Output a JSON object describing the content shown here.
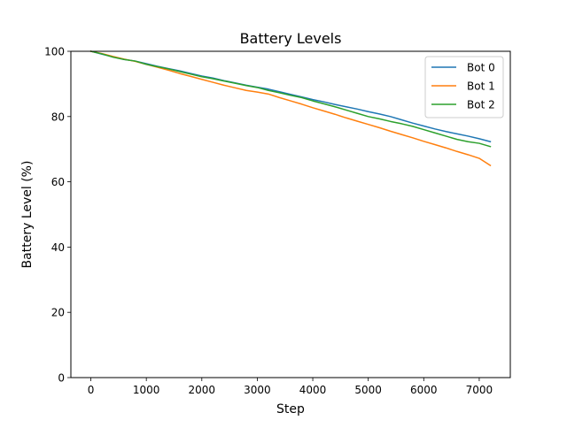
{
  "chart_data": {
    "type": "line",
    "title": "Battery Levels",
    "xlabel": "Step",
    "ylabel": "Battery Level (%)",
    "xlim": [
      -360,
      7560
    ],
    "ylim": [
      0,
      100
    ],
    "xticks": [
      0,
      1000,
      2000,
      3000,
      4000,
      5000,
      6000,
      7000
    ],
    "yticks": [
      0,
      20,
      40,
      60,
      80,
      100
    ],
    "grid": false,
    "legend": "top-right",
    "series": [
      {
        "name": "Bot 0",
        "color": "#1f77b4",
        "x": [
          0,
          200,
          400,
          600,
          800,
          1000,
          1200,
          1400,
          1600,
          1800,
          2000,
          2200,
          2400,
          2600,
          2800,
          3000,
          3200,
          3400,
          3600,
          3800,
          4000,
          4200,
          4400,
          4600,
          4800,
          5000,
          5200,
          5400,
          5600,
          5800,
          6000,
          6200,
          6400,
          6600,
          6800,
          7000,
          7200
        ],
        "y": [
          100,
          99.1,
          98.3,
          97.5,
          97.0,
          96.2,
          95.4,
          94.7,
          94.0,
          93.2,
          92.4,
          91.8,
          91.0,
          90.3,
          89.6,
          89.0,
          88.4,
          87.6,
          86.8,
          86.0,
          85.2,
          84.5,
          83.7,
          83.0,
          82.3,
          81.5,
          80.8,
          80.0,
          79.0,
          78.0,
          77.1,
          76.2,
          75.4,
          74.7,
          74.0,
          73.2,
          72.3
        ]
      },
      {
        "name": "Bot 1",
        "color": "#ff7f0e",
        "x": [
          0,
          200,
          400,
          600,
          800,
          1000,
          1200,
          1400,
          1600,
          1800,
          2000,
          2200,
          2400,
          2600,
          2800,
          3000,
          3200,
          3400,
          3600,
          3800,
          4000,
          4200,
          4400,
          4600,
          4800,
          5000,
          5200,
          5400,
          5600,
          5800,
          6000,
          6200,
          6400,
          6600,
          6800,
          7000,
          7200
        ],
        "y": [
          100,
          99.3,
          98.4,
          97.6,
          96.9,
          96.0,
          95.1,
          94.2,
          93.2,
          92.3,
          91.4,
          90.5,
          89.6,
          88.8,
          88.0,
          87.5,
          86.9,
          85.8,
          84.8,
          83.8,
          82.7,
          81.7,
          80.7,
          79.6,
          78.6,
          77.6,
          76.6,
          75.5,
          74.5,
          73.5,
          72.4,
          71.4,
          70.4,
          69.3,
          68.3,
          67.2,
          65.0
        ]
      },
      {
        "name": "Bot 2",
        "color": "#2ca02c",
        "x": [
          0,
          200,
          400,
          600,
          800,
          1000,
          1200,
          1400,
          1600,
          1800,
          2000,
          2200,
          2400,
          2600,
          2800,
          3000,
          3200,
          3400,
          3600,
          3800,
          4000,
          4200,
          4400,
          4600,
          4800,
          5000,
          5200,
          5400,
          5600,
          5800,
          6000,
          6200,
          6400,
          6600,
          6800,
          7000,
          7200
        ],
        "y": [
          100,
          99.2,
          98.2,
          97.5,
          97.0,
          96.0,
          95.3,
          94.6,
          93.8,
          93.0,
          92.2,
          91.6,
          90.9,
          90.2,
          89.5,
          88.9,
          88.0,
          87.3,
          86.5,
          85.8,
          84.8,
          83.9,
          83.0,
          82.0,
          81.0,
          80.0,
          79.3,
          78.5,
          77.8,
          77.0,
          76.0,
          75.0,
          74.0,
          73.0,
          72.3,
          71.8,
          70.8
        ]
      }
    ]
  }
}
